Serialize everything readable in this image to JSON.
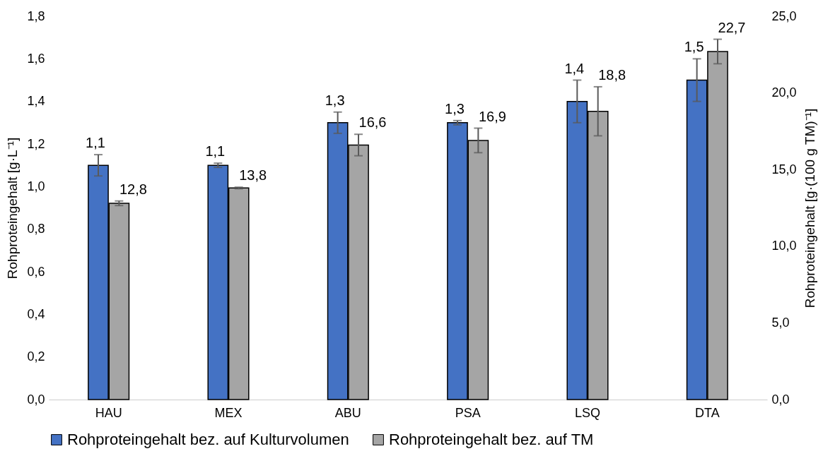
{
  "chart_data": {
    "type": "bar",
    "categories": [
      "HAU",
      "MEX",
      "ABU",
      "PSA",
      "LSQ",
      "DTA"
    ],
    "series": [
      {
        "name": "Rohproteingehalt bez. auf Kulturvolumen",
        "color": "#4472c4",
        "values": [
          1.1,
          1.1,
          1.3,
          1.3,
          1.4,
          1.5
        ],
        "errors": [
          0.05,
          0.01,
          0.05,
          0.01,
          0.1,
          0.1
        ],
        "value_labels": [
          "1,1",
          "1,1",
          "1,3",
          "1,3",
          "1,4",
          "1,5"
        ]
      },
      {
        "name": "Rohproteingehalt bez. auf TM",
        "color": "#a5a5a5",
        "axis": "y2",
        "values": [
          12.8,
          13.8,
          16.6,
          16.9,
          18.8,
          22.7
        ],
        "errors": [
          0.15,
          0.05,
          0.7,
          0.8,
          1.6,
          0.8
        ],
        "value_labels": [
          "12,8",
          "13,8",
          "16,6",
          "16,9",
          "18,8",
          "22,7"
        ]
      }
    ],
    "ylabel": "Rohproteingehalt [g·L⁻¹]",
    "y2label": "Rohproteingehalt [g·(100 g TM)⁻¹]",
    "ylim": [
      0,
      1.8
    ],
    "yticks": [
      {
        "value": 0,
        "label": "0,0"
      },
      {
        "value": 0.2,
        "label": "0,2"
      },
      {
        "value": 0.4,
        "label": "0,4"
      },
      {
        "value": 0.6,
        "label": "0,6"
      },
      {
        "value": 0.8,
        "label": "0,8"
      },
      {
        "value": 1.0,
        "label": "1,0"
      },
      {
        "value": 1.2,
        "label": "1,2"
      },
      {
        "value": 1.4,
        "label": "1,4"
      },
      {
        "value": 1.6,
        "label": "1,6"
      },
      {
        "value": 1.8,
        "label": "1,8"
      }
    ],
    "y2lim": [
      0,
      25
    ],
    "y2ticks": [
      {
        "value": 0,
        "label": "0,0"
      },
      {
        "value": 5,
        "label": "5,0"
      },
      {
        "value": 10,
        "label": "10,0"
      },
      {
        "value": 15,
        "label": "15,0"
      },
      {
        "value": 20,
        "label": "20,0"
      },
      {
        "value": 25,
        "label": "25,0"
      }
    ],
    "legend": "bottom",
    "grid": false
  }
}
